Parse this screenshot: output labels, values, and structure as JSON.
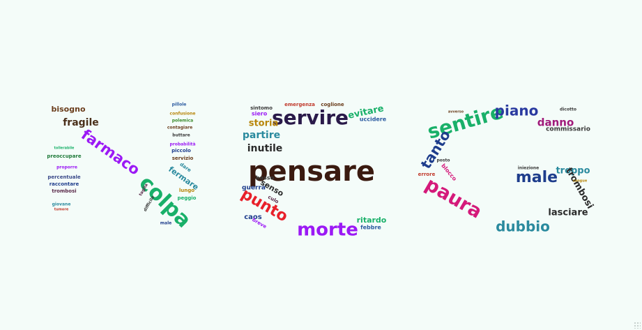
{
  "letters": "NCG",
  "words": [
    {
      "t": "bisogno",
      "c": "#6a3d1c",
      "s": 11
    },
    {
      "t": "fragile",
      "c": "#4a2f1a",
      "s": 14
    },
    {
      "t": "farmaco",
      "c": "#9b19f5",
      "s": 21
    },
    {
      "t": "colpa",
      "c": "#19b069",
      "s": 30
    },
    {
      "t": "preoccupare",
      "c": "#1f7a3a",
      "s": 7
    },
    {
      "t": "percentuale",
      "c": "#3b4a8a",
      "s": 7
    },
    {
      "t": "raccontare",
      "c": "#1e3d8c",
      "s": 7
    },
    {
      "t": "trombosi",
      "c": "#5a2a4a",
      "s": 7
    },
    {
      "t": "proporre",
      "c": "#9b19f5",
      "s": 6
    },
    {
      "t": "tollerabile",
      "c": "#19b069",
      "s": 5
    },
    {
      "t": "giovane",
      "c": "#2a8a9e",
      "s": 6
    },
    {
      "t": "tumore",
      "c": "#c0392b",
      "s": 5
    },
    {
      "t": "pillole",
      "c": "#2a5aa0",
      "s": 6
    },
    {
      "t": "confusione",
      "c": "#b8860b",
      "s": 6
    },
    {
      "t": "polemica",
      "c": "#3a8a2a",
      "s": 6
    },
    {
      "t": "contagiare",
      "c": "#6a3d1c",
      "s": 6
    },
    {
      "t": "buttare",
      "c": "#3a3a3a",
      "s": 6
    },
    {
      "t": "probabilità",
      "c": "#9b19f5",
      "s": 6
    },
    {
      "t": "piccolo",
      "c": "#1e3d8c",
      "s": 7
    },
    {
      "t": "servizio",
      "c": "#6a3d1c",
      "s": 7
    },
    {
      "t": "dare",
      "c": "#2a8a9e",
      "s": 7
    },
    {
      "t": "fermare",
      "c": "#2a8a9e",
      "s": 11
    },
    {
      "t": "lungo",
      "c": "#b8860b",
      "s": 7
    },
    {
      "t": "peggio",
      "c": "#19b069",
      "s": 7
    },
    {
      "t": "male",
      "c": "#1e3d8c",
      "s": 6
    },
    {
      "t": "taglia",
      "c": "#5a2a4a",
      "s": 6
    },
    {
      "t": "difficile",
      "c": "#3a3a3a",
      "s": 6
    },
    {
      "t": "servire",
      "c": "#2a1a4a",
      "s": 28
    },
    {
      "t": "evitare",
      "c": "#19b069",
      "s": 13
    },
    {
      "t": "uccidere",
      "c": "#2a5aa0",
      "s": 8
    },
    {
      "t": "coglione",
      "c": "#6a3d1c",
      "s": 7
    },
    {
      "t": "emergenza",
      "c": "#c0392b",
      "s": 7
    },
    {
      "t": "sintomo",
      "c": "#3a3a3a",
      "s": 7
    },
    {
      "t": "siero",
      "c": "#9b19f5",
      "s": 8
    },
    {
      "t": "storia",
      "c": "#b8860b",
      "s": 13
    },
    {
      "t": "partire",
      "c": "#2a8a9e",
      "s": 14
    },
    {
      "t": "inutile",
      "c": "#2a2a2a",
      "s": 14
    },
    {
      "t": "pensare",
      "c": "#3a1a10",
      "s": 40
    },
    {
      "t": "basso",
      "c": "#3a3a3a",
      "s": 8
    },
    {
      "t": "senso",
      "c": "#2a2a2a",
      "s": 11
    },
    {
      "t": "guerra",
      "c": "#1e3d8c",
      "s": 9
    },
    {
      "t": "culo",
      "c": "#5a2a4a",
      "s": 7
    },
    {
      "t": "punto",
      "c": "#e8202a",
      "s": 22
    },
    {
      "t": "caos",
      "c": "#1e3d8c",
      "s": 10
    },
    {
      "t": "breve",
      "c": "#9b19f5",
      "s": 7
    },
    {
      "t": "morte",
      "c": "#9b19f5",
      "s": 26
    },
    {
      "t": "ritardo",
      "c": "#19b069",
      "s": 11
    },
    {
      "t": "febbre",
      "c": "#2a5aa0",
      "s": 8
    },
    {
      "t": "sentire",
      "c": "#19b069",
      "s": 28
    },
    {
      "t": "tanto",
      "c": "#1e3d8c",
      "s": 20
    },
    {
      "t": "piano",
      "c": "#2a3aa0",
      "s": 20
    },
    {
      "t": "danno",
      "c": "#a0197a",
      "s": 15
    },
    {
      "t": "commissario",
      "c": "#3a3a3a",
      "s": 9
    },
    {
      "t": "dicotto",
      "c": "#3a3a3a",
      "s": 6
    },
    {
      "t": "male",
      "c": "#1e3d8c",
      "s": 22
    },
    {
      "t": "troppo",
      "c": "#2a8a9e",
      "s": 13
    },
    {
      "t": "iniezione",
      "c": "#3a3a3a",
      "s": 6
    },
    {
      "t": "trombosi",
      "c": "#2a2a2a",
      "s": 13
    },
    {
      "t": "paura",
      "c": "#d4197a",
      "s": 27
    },
    {
      "t": "dubbio",
      "c": "#2a8a9e",
      "s": 20
    },
    {
      "t": "lasciare",
      "c": "#2a2a2a",
      "s": 13
    },
    {
      "t": "errore",
      "c": "#c0392b",
      "s": 7
    },
    {
      "t": "blocco",
      "c": "#d4197a",
      "s": 8
    },
    {
      "t": "avverso",
      "c": "#6a3d1c",
      "s": 5
    },
    {
      "t": "posto",
      "c": "#3a3a3a",
      "s": 6
    },
    {
      "t": "sangue",
      "c": "#b8860b",
      "s": 5
    }
  ]
}
